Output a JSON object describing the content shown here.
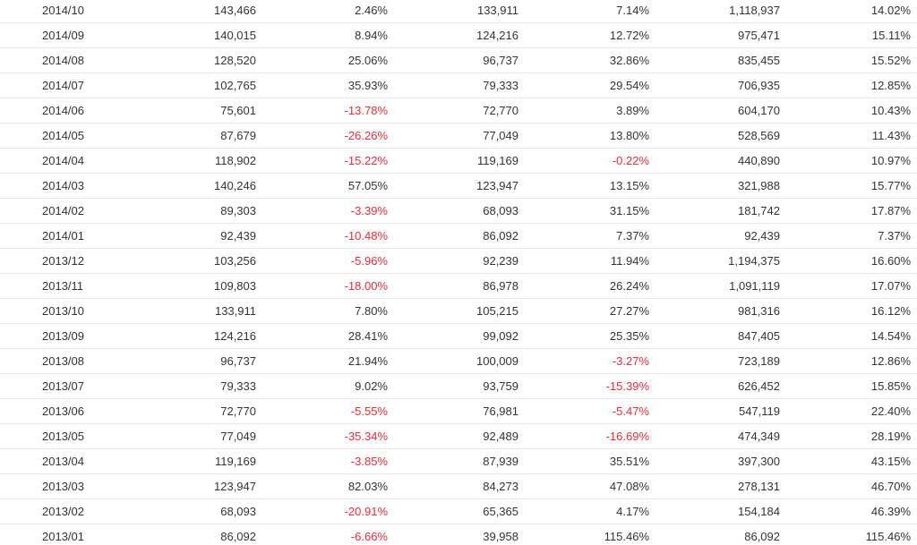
{
  "table": {
    "rows": [
      [
        "2014/10",
        "143,466",
        "2.46%",
        "133,911",
        "7.14%",
        "1,118,937",
        "14.02%"
      ],
      [
        "2014/09",
        "140,015",
        "8.94%",
        "124,216",
        "12.72%",
        "975,471",
        "15.11%"
      ],
      [
        "2014/08",
        "128,520",
        "25.06%",
        "96,737",
        "32.86%",
        "835,455",
        "15.52%"
      ],
      [
        "2014/07",
        "102,765",
        "35.93%",
        "79,333",
        "29.54%",
        "706,935",
        "12.85%"
      ],
      [
        "2014/06",
        "75,601",
        "-13.78%",
        "72,770",
        "3.89%",
        "604,170",
        "10.43%"
      ],
      [
        "2014/05",
        "87,679",
        "-26.26%",
        "77,049",
        "13.80%",
        "528,569",
        "11.43%"
      ],
      [
        "2014/04",
        "118,902",
        "-15.22%",
        "119,169",
        "-0.22%",
        "440,890",
        "10.97%"
      ],
      [
        "2014/03",
        "140,246",
        "57.05%",
        "123,947",
        "13.15%",
        "321,988",
        "15.77%"
      ],
      [
        "2014/02",
        "89,303",
        "-3.39%",
        "68,093",
        "31.15%",
        "181,742",
        "17.87%"
      ],
      [
        "2014/01",
        "92,439",
        "-10.48%",
        "86,092",
        "7.37%",
        "92,439",
        "7.37%"
      ],
      [
        "2013/12",
        "103,256",
        "-5.96%",
        "92,239",
        "11.94%",
        "1,194,375",
        "16.60%"
      ],
      [
        "2013/11",
        "109,803",
        "-18.00%",
        "86,978",
        "26.24%",
        "1,091,119",
        "17.07%"
      ],
      [
        "2013/10",
        "133,911",
        "7.80%",
        "105,215",
        "27.27%",
        "981,316",
        "16.12%"
      ],
      [
        "2013/09",
        "124,216",
        "28.41%",
        "99,092",
        "25.35%",
        "847,405",
        "14.54%"
      ],
      [
        "2013/08",
        "96,737",
        "21.94%",
        "100,009",
        "-3.27%",
        "723,189",
        "12.86%"
      ],
      [
        "2013/07",
        "79,333",
        "9.02%",
        "93,759",
        "-15.39%",
        "626,452",
        "15.85%"
      ],
      [
        "2013/06",
        "72,770",
        "-5.55%",
        "76,981",
        "-5.47%",
        "547,119",
        "22.40%"
      ],
      [
        "2013/05",
        "77,049",
        "-35.34%",
        "92,489",
        "-16.69%",
        "474,349",
        "28.19%"
      ],
      [
        "2013/04",
        "119,169",
        "-3.85%",
        "87,939",
        "35.51%",
        "397,300",
        "43.15%"
      ],
      [
        "2013/03",
        "123,947",
        "82.03%",
        "84,273",
        "47.08%",
        "278,131",
        "46.70%"
      ],
      [
        "2013/02",
        "68,093",
        "-20.91%",
        "65,365",
        "4.17%",
        "154,184",
        "46.39%"
      ],
      [
        "2013/01",
        "86,092",
        "-6.66%",
        "39,958",
        "115.46%",
        "86,092",
        "115.46%"
      ]
    ]
  },
  "colors": {
    "text": "#333333",
    "negative": "#e8303a",
    "row_border": "#e6e6e6"
  }
}
